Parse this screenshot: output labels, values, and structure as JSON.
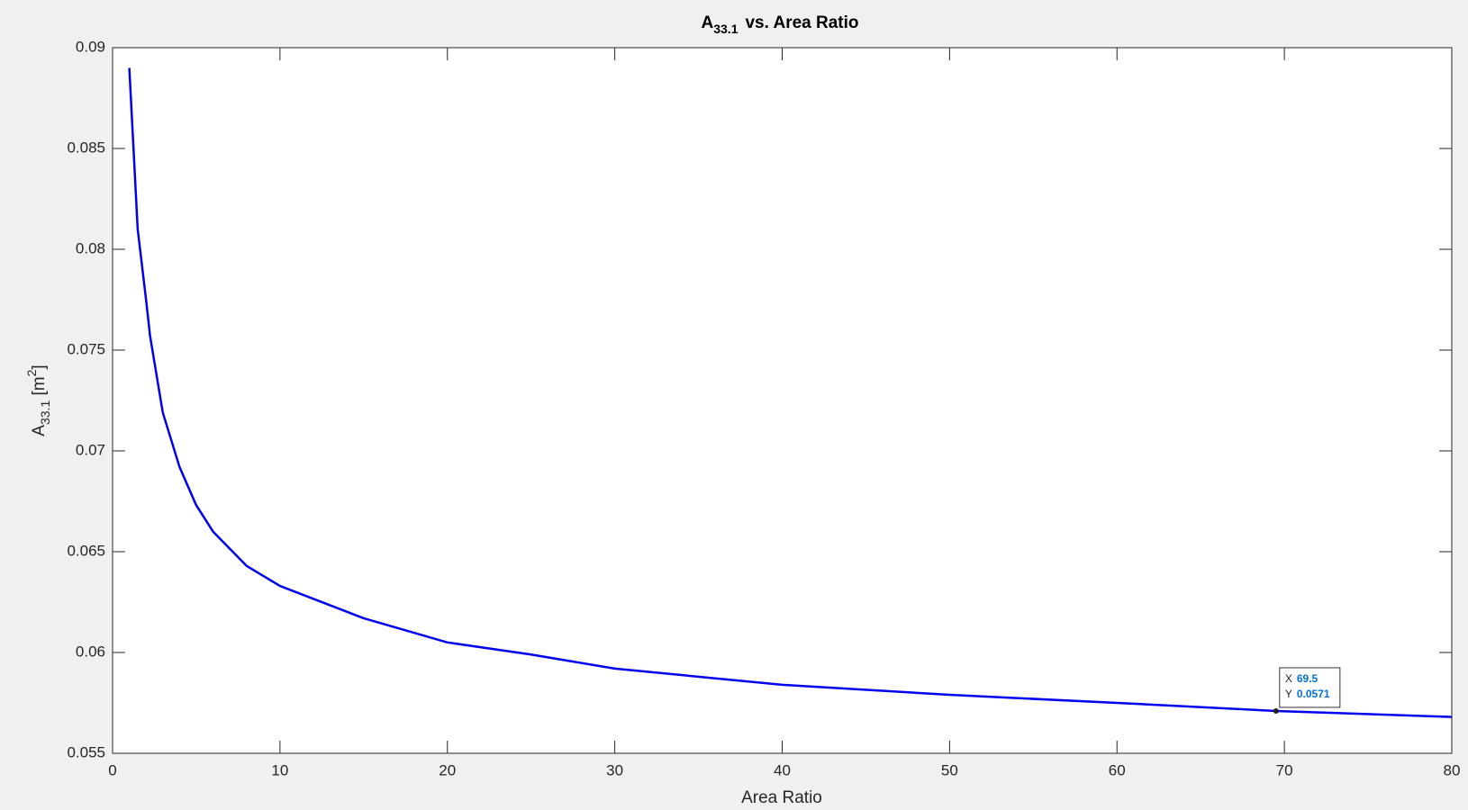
{
  "chart_data": {
    "type": "line",
    "title": [
      "A",
      "33.1",
      "vs. Area Ratio"
    ],
    "xlabel": "Area Ratio",
    "ylabel": [
      "A",
      "33.1",
      " [m",
      "2",
      "]"
    ],
    "x": [
      1,
      1.5,
      2,
      2.24,
      3,
      4,
      5,
      6,
      8,
      10,
      15,
      20,
      25,
      30,
      40,
      50,
      60,
      69.5,
      80
    ],
    "series": [
      {
        "name": "A33.1",
        "color": "#0000ee",
        "values": [
          0.089,
          0.081,
          0.0775,
          0.0757,
          0.0719,
          0.0692,
          0.0673,
          0.066,
          0.0643,
          0.0633,
          0.0617,
          0.0605,
          0.0599,
          0.0592,
          0.0584,
          0.0579,
          0.0575,
          0.0571,
          0.0568
        ]
      }
    ],
    "xlim": [
      0,
      80
    ],
    "xticks": [
      0,
      10,
      20,
      30,
      40,
      50,
      60,
      70,
      80
    ],
    "ylim": [
      0.055,
      0.09
    ],
    "yticks": [
      0.055,
      0.06,
      0.065,
      0.07,
      0.075,
      0.08,
      0.085,
      0.09
    ],
    "grid": false,
    "datatip": {
      "x_label": "X",
      "x": 69.5,
      "y_label": "Y",
      "y": 0.0571
    }
  }
}
